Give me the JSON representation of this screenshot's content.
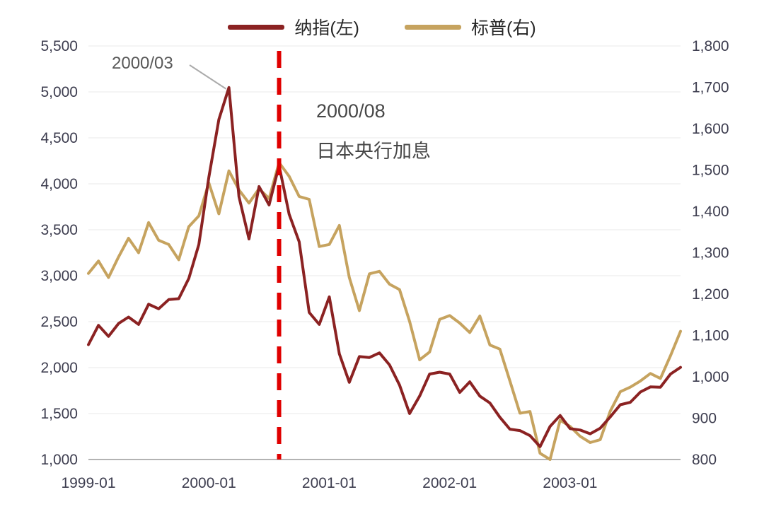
{
  "chart_data": {
    "type": "line",
    "title": "",
    "x_start": "1999-01",
    "x_freq": "monthly",
    "months": 60,
    "x_ticks": [
      {
        "label": "1999-01",
        "month_index": 0
      },
      {
        "label": "2000-01",
        "month_index": 12
      },
      {
        "label": "2001-01",
        "month_index": 24
      },
      {
        "label": "2002-01",
        "month_index": 36
      },
      {
        "label": "2003-01",
        "month_index": 48
      }
    ],
    "left_axis": {
      "min": 1000,
      "max": 5500,
      "step": 500,
      "tick_values": [
        1000,
        1500,
        2000,
        2500,
        3000,
        3500,
        4000,
        4500,
        5000,
        5500
      ],
      "tick_labels": [
        "1,000",
        "1,500",
        "2,000",
        "2,500",
        "3,000",
        "3,500",
        "4,000",
        "4,500",
        "5,000",
        "5,500"
      ]
    },
    "right_axis": {
      "min": 800,
      "max": 1800,
      "step": 100,
      "tick_values": [
        800,
        900,
        1000,
        1100,
        1200,
        1300,
        1400,
        1500,
        1600,
        1700,
        1800
      ],
      "tick_labels": [
        "800",
        "900",
        "1,000",
        "1,100",
        "1,200",
        "1,300",
        "1,400",
        "1,500",
        "1,600",
        "1,700",
        "1,800"
      ]
    },
    "grid": "horizontal",
    "legend_position": "top-center",
    "series": [
      {
        "name": "纳指(左)",
        "axis": "left",
        "color": "#8B2222",
        "values": [
          2250,
          2460,
          2340,
          2480,
          2550,
          2470,
          2690,
          2640,
          2740,
          2750,
          2970,
          3340,
          4070,
          4700,
          5048,
          3860,
          3400,
          3970,
          3770,
          4200,
          3670,
          3370,
          2600,
          2470,
          2770,
          2150,
          1840,
          2120,
          2110,
          2160,
          2030,
          1810,
          1500,
          1690,
          1930,
          1950,
          1930,
          1730,
          1845,
          1690,
          1615,
          1460,
          1330,
          1315,
          1260,
          1140,
          1360,
          1479,
          1336,
          1321,
          1280,
          1341,
          1464,
          1596,
          1623,
          1735,
          1790,
          1787,
          1930,
          2003
        ]
      },
      {
        "name": "标普(右)",
        "axis": "right",
        "color": "#C6A35F",
        "values": [
          1250,
          1280,
          1240,
          1290,
          1335,
          1300,
          1373,
          1330,
          1320,
          1283,
          1363,
          1389,
          1469,
          1394,
          1498,
          1452,
          1420,
          1455,
          1431,
          1518,
          1485,
          1436,
          1429,
          1315,
          1320,
          1366,
          1240,
          1160,
          1249,
          1255,
          1224,
          1211,
          1134,
          1041,
          1060,
          1139,
          1148,
          1130,
          1107,
          1147,
          1077,
          1067,
          990,
          912,
          916,
          815,
          800,
          895,
          880,
          856,
          841,
          848,
          917,
          964,
          975,
          990,
          1008,
          996,
          1051,
          1110
        ]
      }
    ],
    "event_line": {
      "month_index": 19,
      "color": "#E00000",
      "style": "dashed",
      "label_line1": "2000/08",
      "label_line2": "日本央行加息"
    },
    "peak_annotation": {
      "text": "2000/03",
      "month_index": 14,
      "value": 5048,
      "series": "纳指(左)"
    }
  }
}
